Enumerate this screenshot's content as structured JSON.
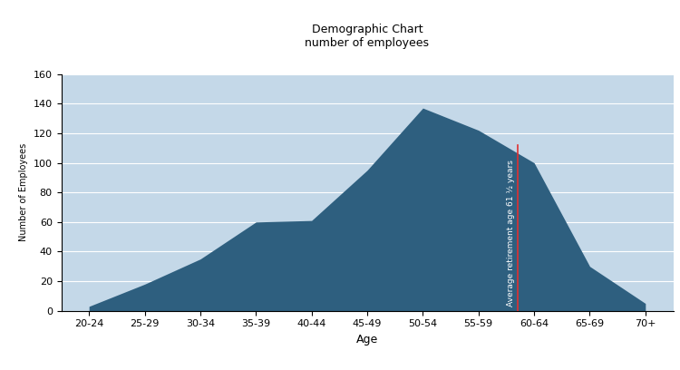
{
  "chart_data": {
    "type": "area",
    "title": "Demographic Chart\nnumber of employees",
    "x_label": "Age",
    "y_label": "Number of Employees",
    "categories": [
      "20-24",
      "25-29",
      "30-34",
      "35-39",
      "40-44",
      "45-49",
      "50-54",
      "55-59",
      "60-64",
      "65-69",
      "70+"
    ],
    "values": [
      3,
      18,
      35,
      60,
      61,
      95,
      137,
      122,
      100,
      30,
      5
    ],
    "color": "#2e5f7f",
    "ylim": [
      0,
      160
    ],
    "yticks": [
      0,
      20,
      40,
      60,
      80,
      100,
      120,
      140,
      160
    ],
    "grid": true,
    "annotations": [
      {
        "text": "Average retirement age 61 ½ years",
        "x": 7.7,
        "ymax": 112,
        "color": "#e03030"
      }
    ]
  }
}
